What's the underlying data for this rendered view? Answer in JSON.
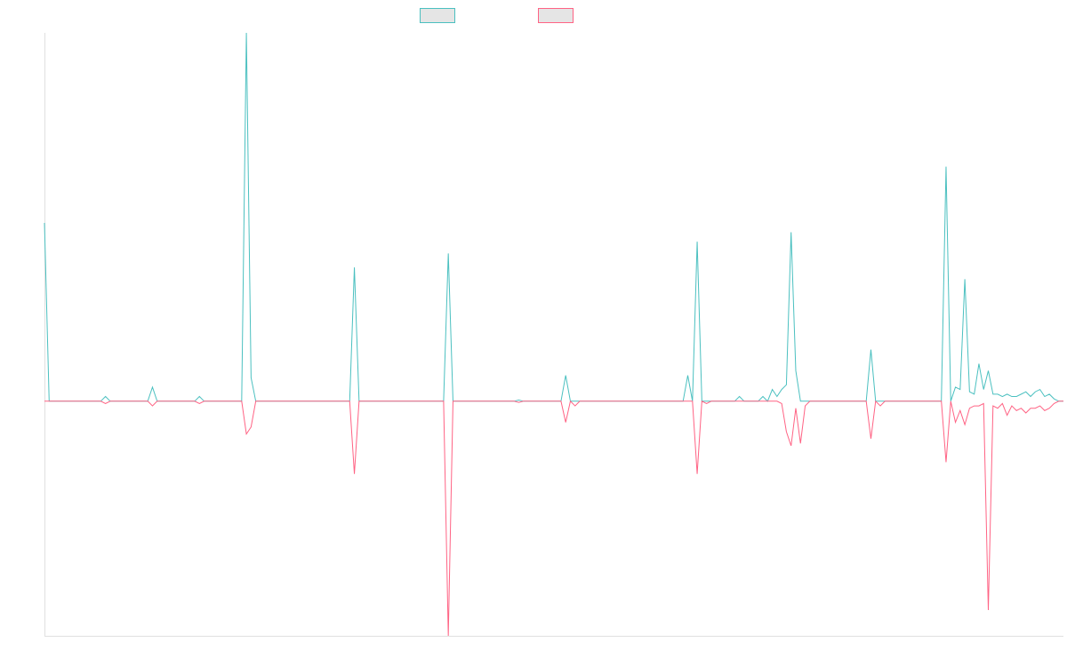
{
  "chart_data": {
    "type": "line",
    "title": "",
    "xlabel": "",
    "ylabel": "",
    "grid": false,
    "legend_position": "top-center",
    "n_points": 218,
    "ylim": [
      -100,
      157
    ],
    "series": [
      {
        "color": "#4bc0c0",
        "fill": "#e5e5e5",
        "spikes": [
          [
            0,
            76
          ],
          [
            13,
            2
          ],
          [
            23,
            6
          ],
          [
            33,
            2
          ],
          [
            43,
            157
          ],
          [
            44,
            10
          ],
          [
            66,
            57
          ],
          [
            86,
            63
          ],
          [
            101,
            0.5
          ],
          [
            111,
            11
          ],
          [
            137,
            11
          ],
          [
            139,
            68
          ],
          [
            148,
            2
          ],
          [
            153,
            2
          ],
          [
            155,
            5
          ],
          [
            156,
            2
          ],
          [
            157,
            5
          ],
          [
            158,
            7
          ],
          [
            159,
            72
          ],
          [
            160,
            13
          ],
          [
            176,
            22
          ],
          [
            192,
            100
          ],
          [
            194,
            6
          ],
          [
            195,
            5
          ],
          [
            196,
            52
          ],
          [
            197,
            4
          ],
          [
            198,
            3
          ],
          [
            199,
            16
          ],
          [
            200,
            5
          ],
          [
            201,
            13
          ],
          [
            202,
            3
          ],
          [
            203,
            3
          ],
          [
            204,
            2
          ],
          [
            205,
            3
          ],
          [
            206,
            2
          ],
          [
            207,
            2
          ],
          [
            208,
            3
          ],
          [
            209,
            4
          ],
          [
            210,
            2
          ],
          [
            211,
            4
          ],
          [
            212,
            5
          ],
          [
            213,
            2
          ],
          [
            214,
            3
          ],
          [
            215,
            1
          ]
        ]
      },
      {
        "color": "#ff6384",
        "fill": "#e5e5e5",
        "spikes": [
          [
            13,
            -1
          ],
          [
            23,
            -2
          ],
          [
            33,
            -1
          ],
          [
            43,
            -14
          ],
          [
            44,
            -11
          ],
          [
            66,
            -31
          ],
          [
            86,
            -100
          ],
          [
            101,
            -0.5
          ],
          [
            111,
            -9
          ],
          [
            113,
            -2
          ],
          [
            139,
            -31
          ],
          [
            141,
            -1
          ],
          [
            157,
            -1
          ],
          [
            158,
            -13
          ],
          [
            159,
            -19
          ],
          [
            160,
            -3
          ],
          [
            161,
            -18
          ],
          [
            162,
            -2
          ],
          [
            176,
            -16
          ],
          [
            178,
            -2
          ],
          [
            192,
            -26
          ],
          [
            194,
            -9
          ],
          [
            195,
            -4
          ],
          [
            196,
            -10
          ],
          [
            197,
            -3
          ],
          [
            198,
            -2
          ],
          [
            199,
            -2
          ],
          [
            200,
            -1
          ],
          [
            201,
            -89
          ],
          [
            202,
            -2
          ],
          [
            203,
            -3
          ],
          [
            204,
            -1
          ],
          [
            205,
            -6
          ],
          [
            206,
            -2
          ],
          [
            207,
            -4
          ],
          [
            208,
            -3
          ],
          [
            209,
            -5
          ],
          [
            210,
            -3
          ],
          [
            211,
            -3
          ],
          [
            212,
            -2
          ],
          [
            213,
            -4
          ],
          [
            214,
            -3
          ],
          [
            215,
            -1
          ]
        ]
      }
    ]
  }
}
